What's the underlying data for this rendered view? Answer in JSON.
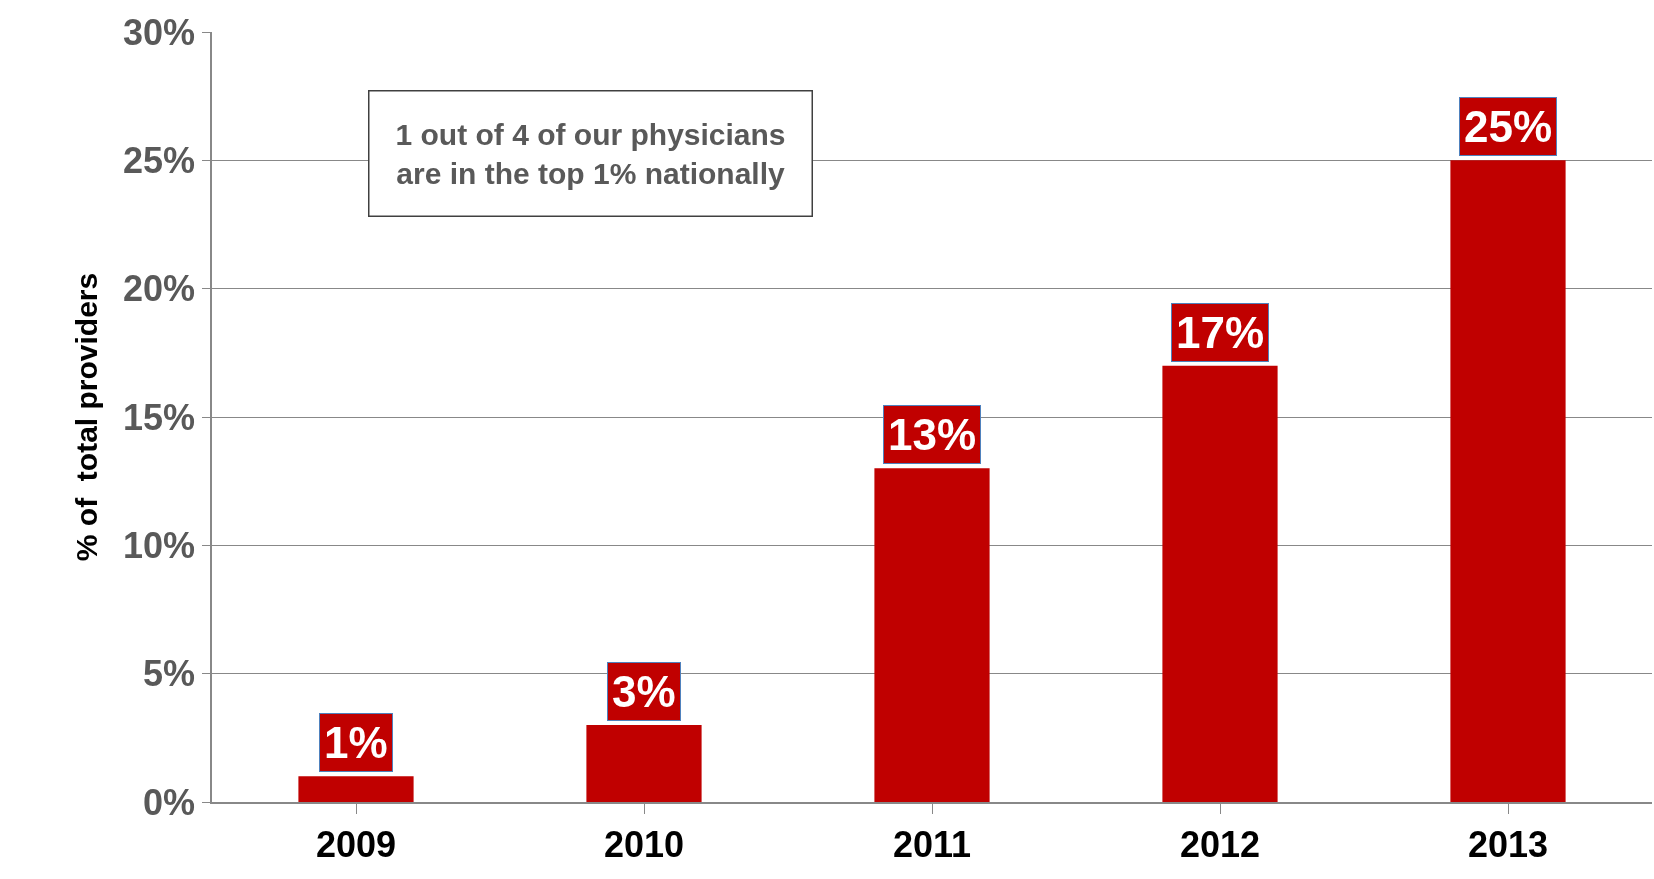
{
  "chart_data": {
    "type": "bar",
    "ylabel": "% of  total providers",
    "categories": [
      "2009",
      "2010",
      "2011",
      "2012",
      "2013"
    ],
    "values": [
      1,
      3,
      13,
      17,
      25
    ],
    "color": "#c00000",
    "value_labels": [
      "1%",
      "3%",
      "13%",
      "17%",
      "25%"
    ],
    "ylim": [
      0,
      30
    ],
    "yticks": [
      {
        "value": 0,
        "label": "0%"
      },
      {
        "value": 5,
        "label": "5%"
      },
      {
        "value": 10,
        "label": "10%"
      },
      {
        "value": 15,
        "label": "15%"
      },
      {
        "value": 20,
        "label": "20%"
      },
      {
        "value": 25,
        "label": "25%"
      },
      {
        "value": 30,
        "label": "30%"
      }
    ],
    "grid": "y",
    "annotations": [
      "1 out of 4 of our physicians\nare in the top 1% nationally"
    ]
  }
}
